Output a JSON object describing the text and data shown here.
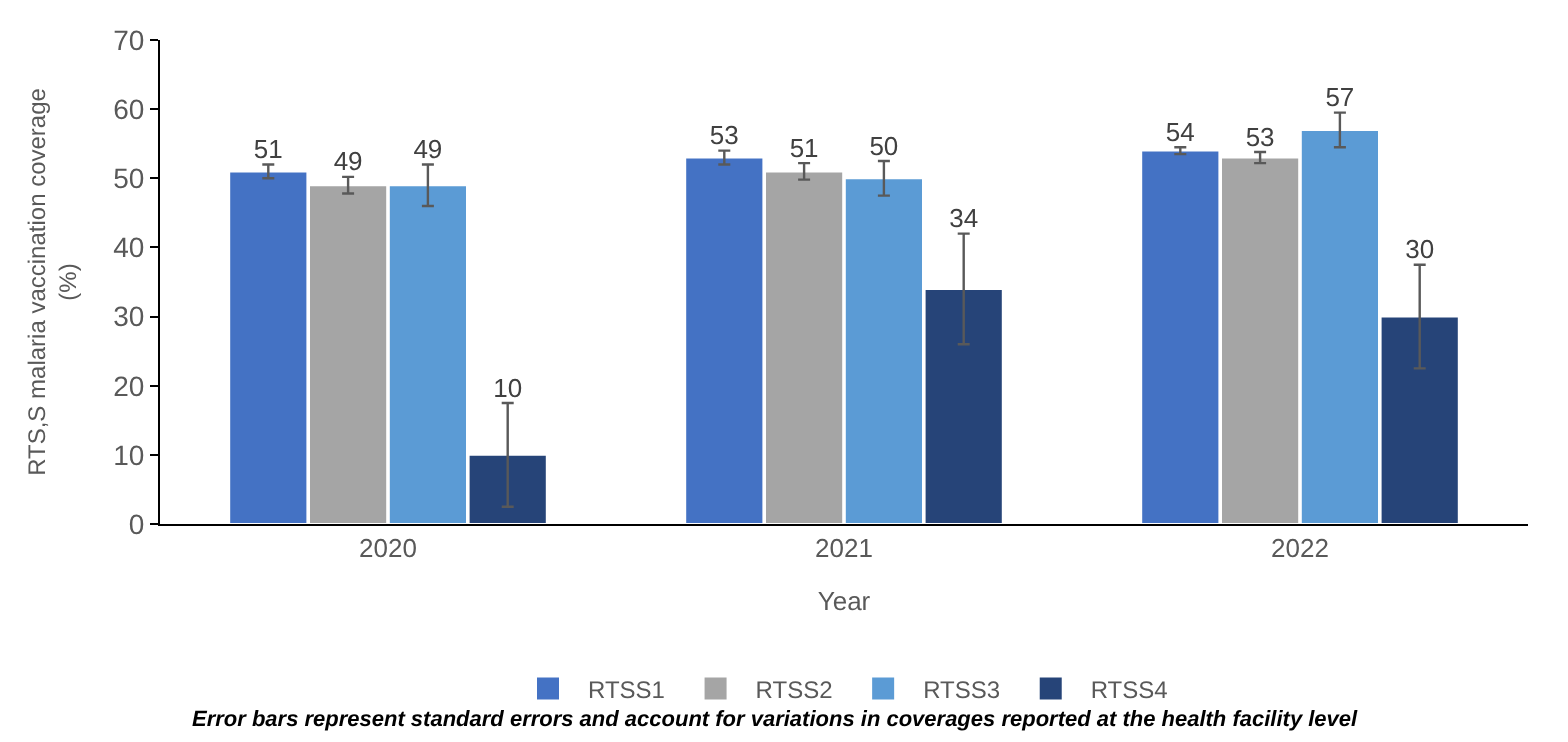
{
  "chart_data": {
    "type": "bar",
    "xlabel": "Year",
    "ylabel": "RTS,S malaria vaccination coverage\n(%)",
    "categories": [
      "2020",
      "2021",
      "2022"
    ],
    "series": [
      {
        "name": "RTSS1",
        "color": "#4472c4",
        "values": [
          51,
          53,
          54
        ],
        "errors": [
          1,
          1,
          0.5
        ]
      },
      {
        "name": "RTSS2",
        "color": "#a5a5a5",
        "values": [
          49,
          51,
          53
        ],
        "errors": [
          1.2,
          1.2,
          0.8
        ]
      },
      {
        "name": "RTSS3",
        "color": "#5b9bd5",
        "values": [
          49,
          50,
          57
        ],
        "errors": [
          3,
          2.5,
          2.5
        ]
      },
      {
        "name": "RTSS4",
        "color": "#264478",
        "values": [
          10,
          34,
          30
        ],
        "errors": [
          7.5,
          8,
          7.5
        ]
      }
    ],
    "ylim": [
      0,
      70
    ],
    "yticks": [
      0,
      10,
      20,
      30,
      40,
      50,
      60,
      70
    ],
    "legend": "bottom",
    "data_labels": true,
    "annotations": [
      "Error bars represent standard errors and account for variations in coverages reported at the health facility level"
    ]
  }
}
